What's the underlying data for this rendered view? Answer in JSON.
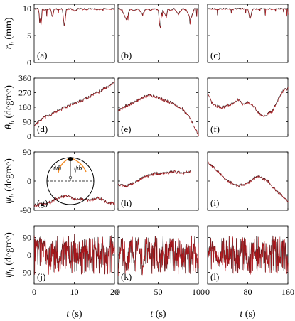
{
  "colors": {
    "dark": "#1a1a1a",
    "red": "#c0161c",
    "orange": "#f28c28",
    "inset_line": "#000000"
  },
  "rows": [
    {
      "ylabel": "r_h (mm)",
      "ylabel_main": "r",
      "ylabel_sub": "h",
      "ylabel_unit": " (mm)",
      "yticks": [
        {
          "v": 10,
          "label": "10"
        },
        {
          "v": 5,
          "label": "5"
        },
        {
          "v": 0,
          "label": "0"
        }
      ],
      "ylim": [
        0,
        10.8
      ]
    },
    {
      "ylabel": "θ_h (degree)",
      "ylabel_main": "θ",
      "ylabel_sub": "h",
      "ylabel_unit": " (degree)",
      "yticks": [
        {
          "v": 360,
          "label": "360"
        },
        {
          "v": 270,
          "label": "270"
        },
        {
          "v": 180,
          "label": "180"
        },
        {
          "v": 90,
          "label": "90"
        },
        {
          "v": 0,
          "label": "0"
        }
      ],
      "ylim": [
        0,
        360
      ]
    },
    {
      "ylabel": "ψ_b (degree)",
      "ylabel_main": "ψ",
      "ylabel_sub": "b",
      "ylabel_unit": " (degree)",
      "yticks": [
        {
          "v": 90,
          "label": "90"
        },
        {
          "v": 0,
          "label": "0"
        },
        {
          "v": -90,
          "label": "-90"
        }
      ],
      "ylim": [
        -90,
        90
      ]
    },
    {
      "ylabel": "ψ_h_l (degree)",
      "ylabel_main": "ψ",
      "ylabel_sub": "h",
      "ylabel_unit": " (degree)",
      "yticks": [
        {
          "v": 90,
          "label": "90"
        },
        {
          "v": 0,
          "label": "0"
        },
        {
          "v": -90,
          "label": "-90"
        }
      ],
      "ylim": [
        -150,
        150
      ]
    }
  ],
  "columns": [
    {
      "xlim": [
        0,
        20
      ],
      "xticks": [
        {
          "v": 0,
          "label": "0"
        },
        {
          "v": 10,
          "label": "10"
        },
        {
          "v": 20,
          "label": "20"
        }
      ]
    },
    {
      "xlim": [
        0,
        100
      ],
      "xticks": [
        {
          "v": 0,
          "label": "0"
        },
        {
          "v": 50,
          "label": "50"
        },
        {
          "v": 100,
          "label": "100"
        }
      ]
    },
    {
      "xlim": [
        0,
        160
      ],
      "xticks": [
        {
          "v": 0,
          "label": "0"
        },
        {
          "v": 80,
          "label": "80"
        },
        {
          "v": 160,
          "label": "160"
        }
      ]
    }
  ],
  "xlabel": "t (s)",
  "xlabel_main": "t",
  "xlabel_unit": " (s)",
  "inset": {
    "psi_h_label": "ψh",
    "psi_b_label": "ψb"
  },
  "chart_data": [
    {
      "panel": "(a)",
      "type": "line",
      "x": [
        0,
        1,
        1.7,
        2,
        3,
        4,
        4.5,
        5,
        6,
        7,
        7.5,
        8,
        9,
        10,
        11,
        12,
        13,
        14,
        15,
        16,
        17,
        18,
        19,
        20
      ],
      "y": [
        10,
        10,
        7,
        9.9,
        9.8,
        10,
        8.5,
        10,
        9.9,
        10,
        6.5,
        9.9,
        10,
        9.6,
        10,
        10,
        9.9,
        10,
        10,
        9.8,
        10,
        10,
        9.9,
        10
      ]
    },
    {
      "panel": "(b)",
      "type": "line",
      "x": [
        0,
        5,
        10,
        15,
        20,
        25,
        30,
        35,
        40,
        45,
        50,
        52,
        55,
        60,
        62,
        65,
        70,
        75,
        80,
        85,
        90,
        95,
        100
      ],
      "y": [
        10,
        9.8,
        8,
        10,
        9.6,
        10,
        9,
        10,
        9.7,
        10,
        9.8,
        6.5,
        9.9,
        8.5,
        10,
        9.7,
        10,
        9,
        10,
        9.8,
        8,
        10,
        9.9
      ]
    },
    {
      "panel": "(c)",
      "type": "line",
      "x": [
        0,
        10,
        20,
        30,
        40,
        50,
        60,
        70,
        80,
        84,
        90,
        100,
        110,
        120,
        130,
        140,
        150,
        160
      ],
      "y": [
        10,
        10,
        9.9,
        10,
        10,
        9.9,
        10,
        10,
        10,
        8,
        10,
        9.9,
        10,
        10,
        9.9,
        10,
        10,
        10
      ]
    },
    {
      "panel": "(d)",
      "type": "line",
      "x": [
        0,
        2,
        4,
        6,
        8,
        10,
        12,
        14,
        16,
        18,
        20
      ],
      "y": [
        70,
        110,
        135,
        160,
        185,
        205,
        225,
        250,
        275,
        305,
        340
      ]
    },
    {
      "panel": "(e)",
      "type": "line",
      "x": [
        0,
        10,
        20,
        30,
        40,
        50,
        60,
        70,
        80,
        90,
        100
      ],
      "y": [
        160,
        190,
        210,
        240,
        255,
        240,
        220,
        200,
        170,
        110,
        10
      ]
    },
    {
      "panel": "(f)",
      "type": "line",
      "x": [
        0,
        10,
        20,
        30,
        40,
        50,
        60,
        70,
        80,
        90,
        100,
        110,
        120,
        130,
        140,
        150,
        160
      ],
      "y": [
        260,
        200,
        185,
        180,
        195,
        200,
        230,
        200,
        210,
        195,
        150,
        120,
        140,
        160,
        230,
        280,
        300
      ]
    },
    {
      "panel": "(g)",
      "type": "line",
      "x": [
        0,
        2,
        4,
        6,
        8,
        10,
        12,
        14,
        16,
        18,
        20
      ],
      "y": [
        -75,
        -70,
        -65,
        -50,
        -45,
        -55,
        -55,
        -60,
        -50,
        -65,
        -70
      ]
    },
    {
      "panel": "(h)",
      "type": "line",
      "x": [
        0,
        10,
        20,
        30,
        40,
        50,
        60,
        70,
        80,
        90
      ],
      "y": [
        -10,
        -15,
        -5,
        10,
        20,
        25,
        25,
        30,
        25,
        30
      ]
    },
    {
      "panel": "(i)",
      "type": "line",
      "x": [
        0,
        20,
        40,
        60,
        80,
        100,
        120,
        140,
        160
      ],
      "y": [
        60,
        30,
        0,
        -15,
        -5,
        15,
        0,
        -35,
        -60
      ]
    },
    {
      "panel": "(j)",
      "type": "line",
      "x": [
        0,
        1,
        2,
        3,
        4,
        5,
        6,
        7,
        8,
        9,
        10,
        11,
        12,
        13,
        14,
        15,
        16,
        17,
        18,
        19,
        20
      ],
      "y": [
        100,
        60,
        120,
        40,
        -80,
        80,
        -100,
        60,
        90,
        -90,
        100,
        -50,
        80,
        70,
        -60,
        90,
        -30,
        80,
        -80,
        70,
        60
      ]
    },
    {
      "panel": "(k)",
      "type": "line",
      "x": [
        0,
        5,
        10,
        15,
        20,
        25,
        30,
        35,
        40,
        45,
        50,
        55,
        60,
        65,
        70,
        75,
        80,
        85,
        90,
        95,
        100
      ],
      "y": [
        -100,
        100,
        -80,
        110,
        -60,
        90,
        -100,
        80,
        -40,
        100,
        -90,
        60,
        -80,
        110,
        -60,
        80,
        -100,
        70,
        -50,
        90,
        -70
      ]
    },
    {
      "panel": "(l)",
      "type": "line",
      "x": [
        0,
        10,
        20,
        30,
        40,
        50,
        60,
        70,
        80,
        90,
        100,
        110,
        120,
        130,
        140,
        150,
        160
      ],
      "y": [
        -20,
        80,
        -90,
        100,
        -80,
        90,
        -100,
        110,
        -90,
        80,
        -110,
        100,
        -80,
        120,
        -100,
        90,
        -60
      ]
    }
  ],
  "panel_labels": [
    "(a)",
    "(b)",
    "(c)",
    "(d)",
    "(e)",
    "(f)",
    "(g)",
    "(h)",
    "(i)",
    "(j)",
    "(k)",
    "(l)"
  ]
}
